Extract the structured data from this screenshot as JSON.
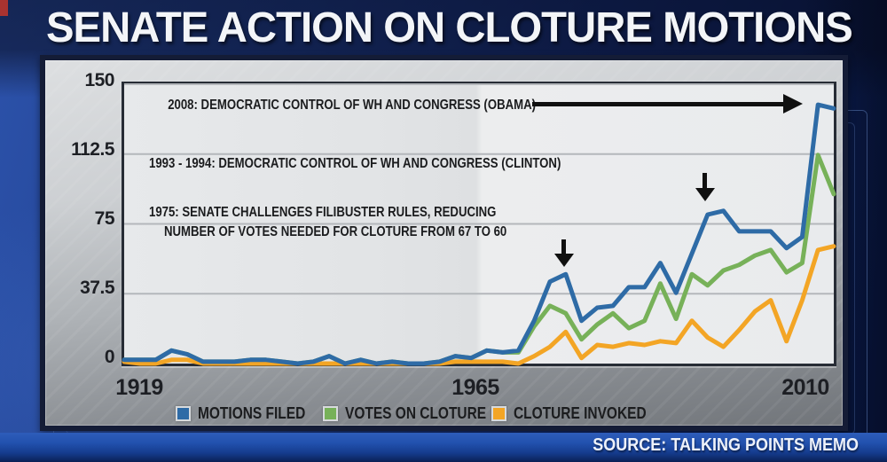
{
  "title": "SENATE ACTION ON CLOTURE MOTIONS",
  "source": "SOURCE: TALKING POINTS MEMO",
  "annotations": {
    "obama": "2008: DEMOCRATIC CONTROL OF WH AND CONGRESS (OBAMA)",
    "clinton": "1993 - 1994: DEMOCRATIC CONTROL OF WH AND CONGRESS (CLINTON)",
    "filibuster_1975_line1": "1975: SENATE CHALLENGES FILIBUSTER RULES, REDUCING",
    "filibuster_1975_line2": "NUMBER OF VOTES NEEDED FOR CLOTURE FROM 67 TO 60"
  },
  "axes": {
    "y_ticks": [
      "150",
      "112.5",
      "75",
      "37.5",
      "0"
    ],
    "x_ticks": [
      "1919",
      "1965",
      "2010"
    ]
  },
  "legend": [
    {
      "label": "MOTIONS FILED",
      "color": "#2e6ba6"
    },
    {
      "label": "VOTES ON CLOTURE",
      "color": "#77b159"
    },
    {
      "label": "CLOTURE INVOKED",
      "color": "#f3a525"
    }
  ],
  "colors": {
    "background_blue": "#1d3c8e",
    "panel_silver": "#c2c5c9",
    "plot_background": "#e7e9eb",
    "title_text": "#f3f5f8",
    "annotation_text": "#1b1c1e",
    "source_bar_blue": "#2251ae",
    "red_accent": "#a93330"
  },
  "chart_data": {
    "type": "line",
    "title": "SENATE ACTION ON CLOTURE MOTIONS",
    "xlabel": "",
    "ylabel": "",
    "x_unit": "two-year Congress, start year shown",
    "x": [
      1919,
      1921,
      1923,
      1925,
      1927,
      1929,
      1931,
      1933,
      1935,
      1937,
      1939,
      1941,
      1943,
      1945,
      1947,
      1949,
      1951,
      1953,
      1955,
      1957,
      1959,
      1961,
      1963,
      1965,
      1967,
      1969,
      1971,
      1973,
      1975,
      1977,
      1979,
      1981,
      1983,
      1985,
      1987,
      1989,
      1991,
      1993,
      1995,
      1997,
      1999,
      2001,
      2003,
      2005,
      2007,
      2009
    ],
    "x_tick_labels": [
      "1919",
      "1965",
      "2010"
    ],
    "ylim": [
      0,
      150
    ],
    "y_gridlines": [
      37.5,
      75,
      112.5,
      150
    ],
    "grid": "horizontal only",
    "legend_position": "bottom",
    "series": [
      {
        "name": "MOTIONS FILED",
        "color": "#2e6ba6",
        "values": [
          2,
          2,
          2,
          7,
          5,
          1,
          1,
          1,
          2,
          2,
          1,
          0,
          1,
          4,
          0,
          2,
          0,
          1,
          0,
          0,
          1,
          4,
          3,
          7,
          6,
          7,
          23,
          44,
          48,
          23,
          30,
          31,
          41,
          41,
          54,
          38,
          59,
          80,
          82,
          71,
          71,
          71,
          62,
          68,
          139,
          137
        ]
      },
      {
        "name": "VOTES ON CLOTURE",
        "color": "#77b159",
        "values": [
          2,
          2,
          2,
          7,
          5,
          1,
          1,
          1,
          2,
          2,
          1,
          0,
          1,
          4,
          0,
          2,
          0,
          1,
          0,
          0,
          1,
          4,
          3,
          7,
          6,
          6,
          20,
          31,
          27,
          13,
          21,
          27,
          19,
          23,
          43,
          24,
          48,
          42,
          50,
          53,
          58,
          61,
          49,
          54,
          112,
          91
        ]
      },
      {
        "name": "CLOTURE INVOKED",
        "color": "#f3a525",
        "values": [
          1,
          0,
          0,
          2,
          2,
          0,
          0,
          0,
          0,
          0,
          0,
          0,
          0,
          0,
          0,
          0,
          0,
          0,
          0,
          0,
          0,
          1,
          1,
          1,
          1,
          0,
          4,
          9,
          17,
          3,
          10,
          9,
          11,
          10,
          12,
          11,
          23,
          14,
          9,
          18,
          28,
          34,
          12,
          34,
          61,
          63
        ]
      }
    ],
    "annotation_arrows": [
      {
        "label_key": "obama",
        "points_to": {
          "x": 2008,
          "y": 139
        }
      },
      {
        "label_key": "clinton",
        "points_to": {
          "x": 1993,
          "y": 80
        }
      },
      {
        "label_key": "filibuster_1975_line1",
        "points_to": {
          "x": 1975,
          "y": 48
        }
      }
    ]
  }
}
